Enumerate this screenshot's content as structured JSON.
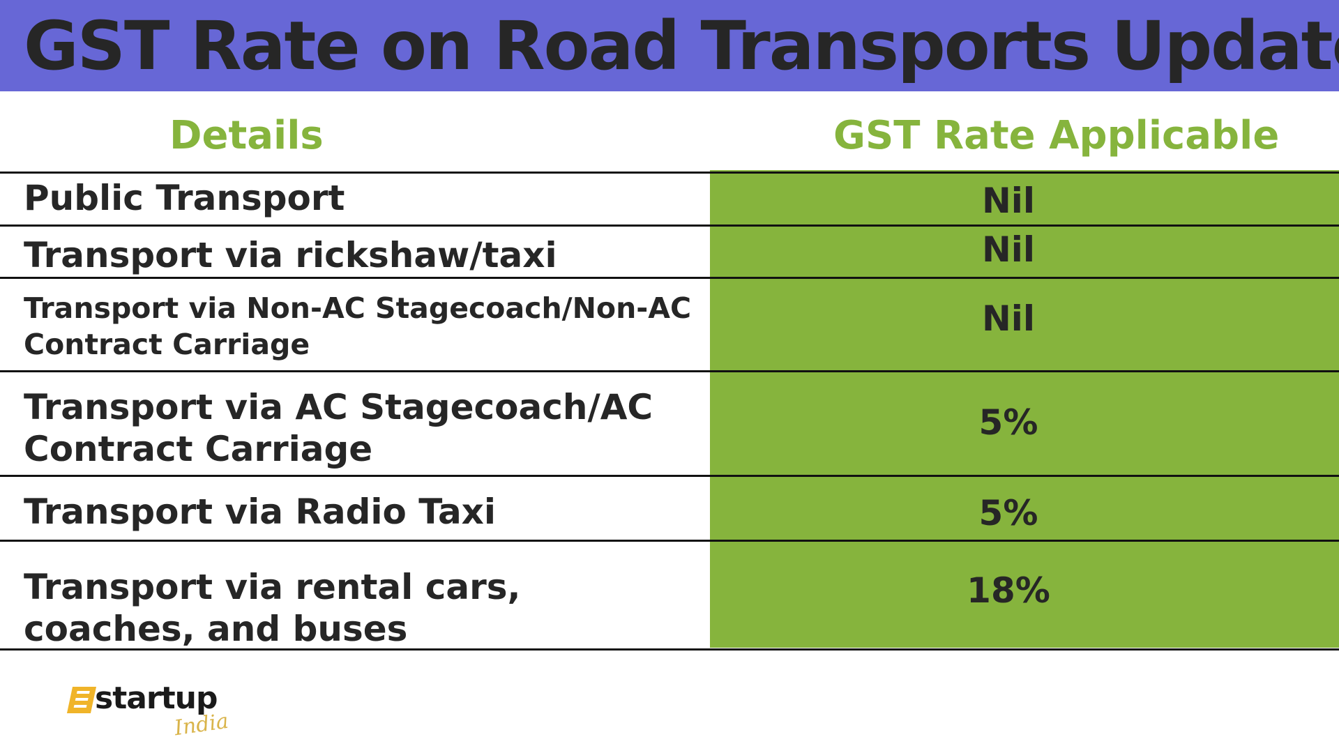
{
  "title": "GST Rate on Road Transports Update",
  "colors": {
    "title_bar": "#6767d6",
    "header_text": "#86b43d",
    "rate_panel": "#86b43d",
    "body_text": "#262626"
  },
  "table": {
    "headers": {
      "details": "Details",
      "rate": "GST Rate Applicable"
    },
    "rows": [
      {
        "detail": "Public Transport",
        "rate": "Nil"
      },
      {
        "detail": "Transport via rickshaw/taxi",
        "rate": "Nil"
      },
      {
        "detail": "Transport via Non-AC Stagecoach/Non-AC Contract Carriage",
        "rate": "Nil"
      },
      {
        "detail": "Transport via AC Stagecoach/AC Contract Carriage",
        "rate": "5%"
      },
      {
        "detail": "Transport via Radio Taxi",
        "rate": "5%"
      },
      {
        "detail": "Transport via rental cars, coaches, and buses",
        "rate": "18%"
      }
    ]
  },
  "logo": {
    "brand": "startup",
    "script": "India"
  }
}
